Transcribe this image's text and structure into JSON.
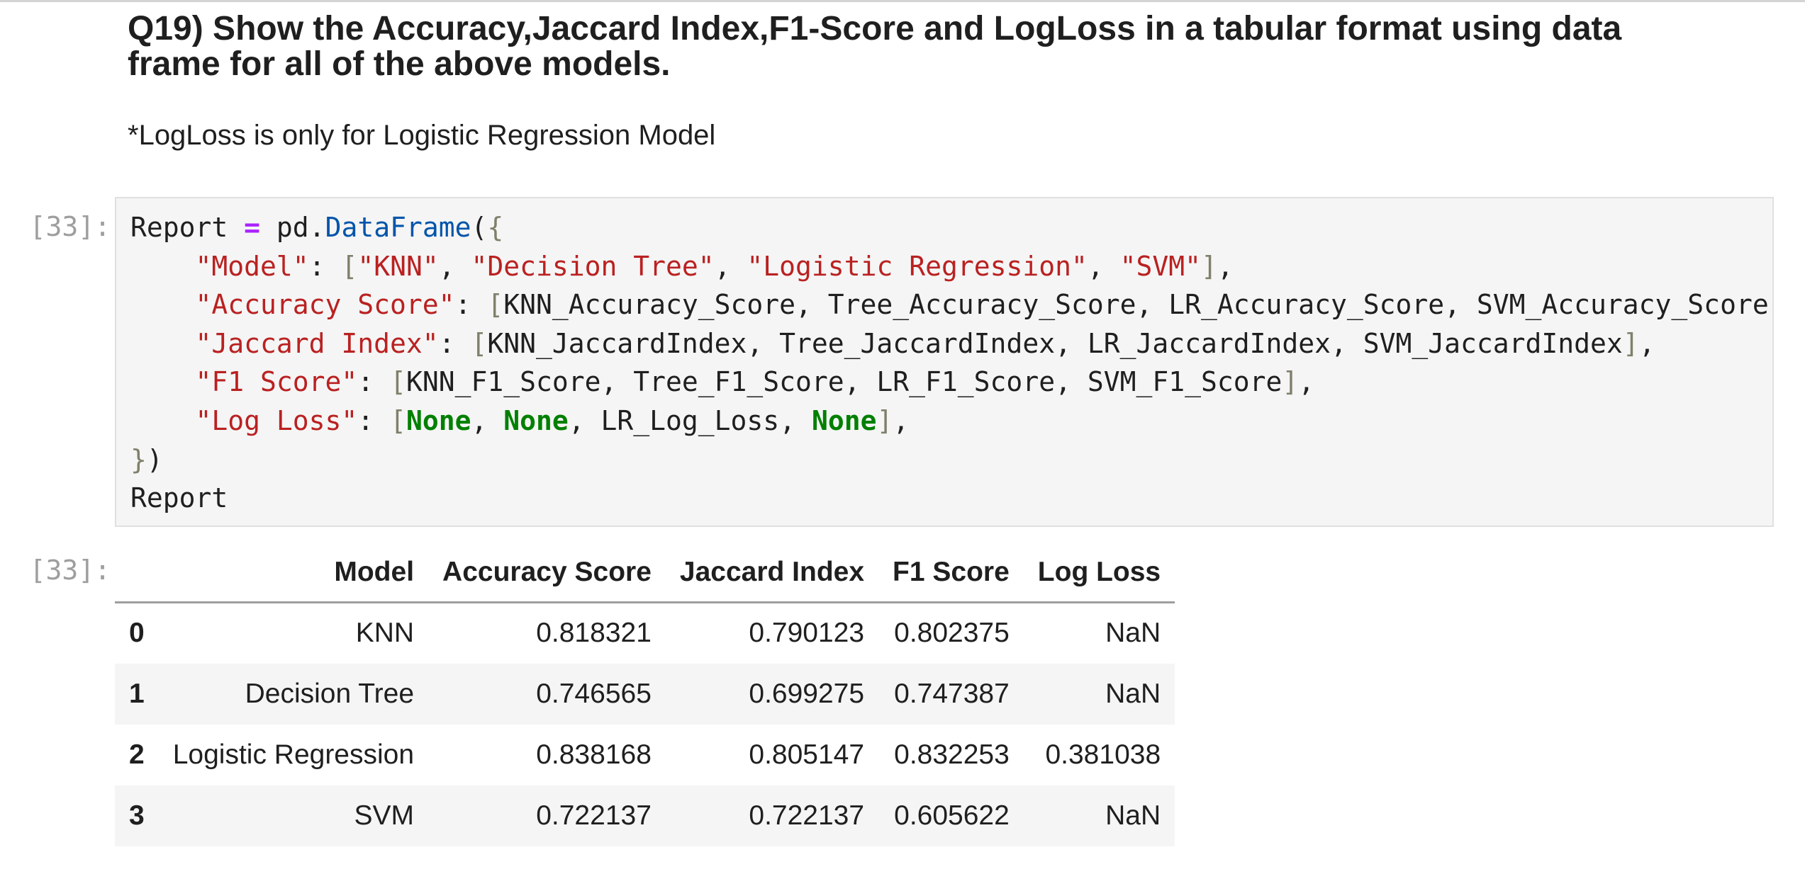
{
  "markdown": {
    "heading": "Q19) Show the Accuracy,Jaccard Index,F1-Score and LogLoss in a tabular format using data frame for all of the above models.",
    "note": "*LogLoss is only for Logistic Regression Model"
  },
  "code_cell": {
    "prompt": "[33]:",
    "lines": {
      "l1": {
        "a": "Report ",
        "op": "=",
        "b": " pd.",
        "fn": "DataFrame",
        "p": "(",
        "br": "{"
      },
      "l2": {
        "indent": "    ",
        "key": "\"Model\"",
        "colon": ": ",
        "ob": "[",
        "s1": "\"KNN\"",
        "c1": ", ",
        "s2": "\"Decision Tree\"",
        "c2": ", ",
        "s3": "\"Logistic Regression\"",
        "c3": ", ",
        "s4": "\"SVM\"",
        "cb": "]",
        "end": ","
      },
      "l3": {
        "indent": "    ",
        "key": "\"Accuracy Score\"",
        "colon": ": ",
        "ob": "[",
        "vals": "KNN_Accuracy_Score, Tree_Accuracy_Score, LR_Accuracy_Score, SVM_Accuracy_Score",
        "cb": "]",
        "end": ","
      },
      "l4": {
        "indent": "    ",
        "key": "\"Jaccard Index\"",
        "colon": ": ",
        "ob": "[",
        "vals": "KNN_JaccardIndex, Tree_JaccardIndex, LR_JaccardIndex, SVM_JaccardIndex",
        "cb": "]",
        "end": ","
      },
      "l5": {
        "indent": "    ",
        "key": "\"F1 Score\"",
        "colon": ": ",
        "ob": "[",
        "vals": "KNN_F1_Score, Tree_F1_Score, LR_F1_Score, SVM_F1_Score",
        "cb": "]",
        "end": ","
      },
      "l6": {
        "indent": "    ",
        "key": "\"Log Loss\"",
        "colon": ": ",
        "ob": "[",
        "n1": "None",
        "c1": ", ",
        "n2": "None",
        "c2": ", ",
        "v": "LR_Log_Loss",
        "c3": ", ",
        "n3": "None",
        "cb": "]",
        "end": ","
      },
      "l7": {
        "br": "}",
        "p": ")"
      },
      "l8": {
        "text": "Report"
      }
    }
  },
  "output_cell": {
    "prompt": "[33]:",
    "columns": [
      "",
      "Model",
      "Accuracy Score",
      "Jaccard Index",
      "F1 Score",
      "Log Loss"
    ],
    "rows": [
      [
        "0",
        "KNN",
        "0.818321",
        "0.790123",
        "0.802375",
        "NaN"
      ],
      [
        "1",
        "Decision Tree",
        "0.746565",
        "0.699275",
        "0.747387",
        "NaN"
      ],
      [
        "2",
        "Logistic Regression",
        "0.838168",
        "0.805147",
        "0.832253",
        "0.381038"
      ],
      [
        "3",
        "SVM",
        "0.722137",
        "0.722137",
        "0.605622",
        "NaN"
      ]
    ]
  }
}
